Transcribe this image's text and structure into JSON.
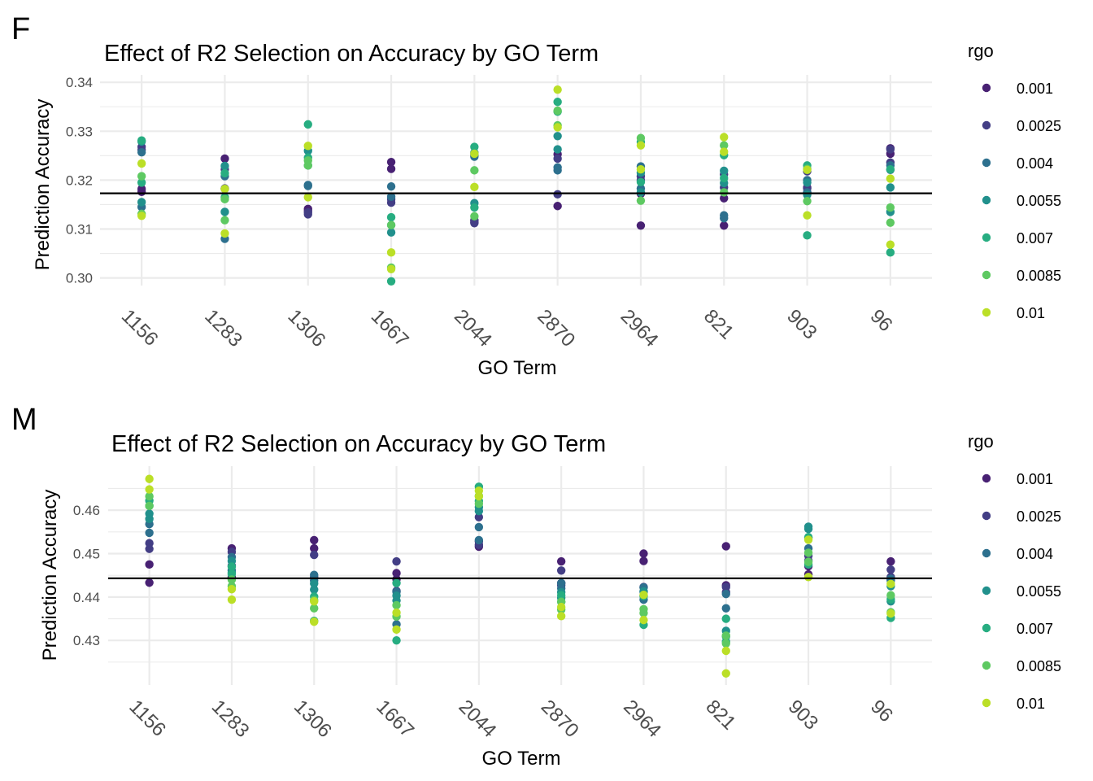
{
  "legend": {
    "title": "rgo",
    "levels": [
      {
        "label": "0.001",
        "color": "#482173"
      },
      {
        "label": "0.0025",
        "color": "#433E85"
      },
      {
        "label": "0.004",
        "color": "#2D708E"
      },
      {
        "label": "0.0055",
        "color": "#21908C"
      },
      {
        "label": "0.007",
        "color": "#27AD81"
      },
      {
        "label": "0.0085",
        "color": "#5EC962"
      },
      {
        "label": "0.01",
        "color": "#BBDF27"
      }
    ]
  },
  "chart_data": [
    {
      "panel_label": "F",
      "type": "scatter",
      "title": "Effect of R2 Selection on Accuracy by GO Term",
      "xlabel": "GO Term",
      "ylabel": "Prediction Accuracy",
      "categories": [
        "1156",
        "1283",
        "1306",
        "1667",
        "2044",
        "2870",
        "2964",
        "821",
        "903",
        "96"
      ],
      "ylim": [
        0.2975,
        0.3415
      ],
      "yticks": [
        0.3,
        0.31,
        0.32,
        0.33,
        0.34
      ],
      "ytick_labels": [
        "0.30",
        "0.31",
        "0.32",
        "0.33",
        "0.34"
      ],
      "grid": true,
      "legend_position": "right",
      "hline": 0.3173,
      "series": [
        {
          "name": "0.001",
          "values": [
            [
              0.3176,
              0.3182
            ],
            [
              0.3244,
              0.3182
            ],
            [
              0.3137,
              0.3141
            ],
            [
              0.3237,
              0.3223
            ],
            [
              0.3114,
              0.3118
            ],
            [
              0.3253,
              0.3147
            ],
            [
              0.3107,
              0.3172
            ],
            [
              0.3163,
              0.3107
            ],
            [
              0.3185,
              0.3175
            ],
            [
              0.3254,
              0.3265
            ]
          ]
        },
        {
          "name": "0.0025",
          "values": [
            [
              0.3268,
              0.3262
            ],
            [
              0.3222,
              0.3183
            ],
            [
              0.313,
              0.3134
            ],
            [
              0.3154,
              0.3161
            ],
            [
              0.3112,
              0.3117
            ],
            [
              0.3244,
              0.3171
            ],
            [
              0.3208,
              0.32
            ],
            [
              0.3212,
              0.3185
            ],
            [
              0.3218,
              0.3183
            ],
            [
              0.3263,
              0.3236
            ]
          ]
        },
        {
          "name": "0.004",
          "values": [
            [
              0.3257,
              0.3145
            ],
            [
              0.3208,
              0.308
            ],
            [
              0.3188,
              0.319
            ],
            [
              0.3187,
              0.3166
            ],
            [
              0.3251,
              0.3248
            ],
            [
              0.322,
              0.3226
            ],
            [
              0.3228,
              0.3183
            ],
            [
              0.3128,
              0.3122
            ],
            [
              0.3175,
              0.32
            ],
            [
              0.323,
              0.3221
            ]
          ]
        },
        {
          "name": "0.0055",
          "values": [
            [
              0.3279,
              0.3155
            ],
            [
              0.3229,
              0.3135
            ],
            [
              0.326,
              0.323
            ],
            [
              0.3108,
              0.3093
            ],
            [
              0.3256,
              0.3153
            ],
            [
              0.3263,
              0.329
            ],
            [
              0.3215,
              0.3175
            ],
            [
              0.3219,
              0.3194
            ],
            [
              0.3195,
              0.317
            ],
            [
              0.3185,
              0.3135
            ]
          ]
        },
        {
          "name": "0.007",
          "values": [
            [
              0.3281,
              0.3195
            ],
            [
              0.3214,
              0.3165
            ],
            [
              0.3314,
              0.3246
            ],
            [
              0.3124,
              0.2993
            ],
            [
              0.3268,
              0.3144
            ],
            [
              0.336,
              0.334
            ],
            [
              0.3278,
              0.3196
            ],
            [
              0.3251,
              0.3204
            ],
            [
              0.323,
              0.3087
            ],
            [
              0.3222,
              0.3052
            ]
          ]
        },
        {
          "name": "0.0085",
          "values": [
            [
              0.3208,
              0.3131
            ],
            [
              0.3161,
              0.3118
            ],
            [
              0.323,
              0.324
            ],
            [
              0.3108,
              0.3021
            ],
            [
              0.322,
              0.3126
            ],
            [
              0.3342,
              0.3312
            ],
            [
              0.3286,
              0.3158
            ],
            [
              0.3271,
              0.3175
            ],
            [
              0.3223,
              0.3157
            ],
            [
              0.3113,
              0.3144
            ]
          ]
        },
        {
          "name": "0.01",
          "values": [
            [
              0.3234,
              0.3127
            ],
            [
              0.3182,
              0.3091
            ],
            [
              0.327,
              0.3165
            ],
            [
              0.3052,
              0.3018
            ],
            [
              0.3186,
              0.3254
            ],
            [
              0.3385,
              0.3308
            ],
            [
              0.3271,
              0.3222
            ],
            [
              0.3288,
              0.3258
            ],
            [
              0.3221,
              0.3128
            ],
            [
              0.3203,
              0.3068
            ]
          ]
        }
      ]
    },
    {
      "panel_label": "M",
      "type": "scatter",
      "title": "Effect of R2 Selection on Accuracy by GO Term",
      "xlabel": "GO Term",
      "ylabel": "Prediction Accuracy",
      "categories": [
        "1156",
        "1283",
        "1306",
        "1667",
        "2044",
        "2870",
        "2964",
        "821",
        "903",
        "96"
      ],
      "ylim": [
        0.4213,
        0.4693
      ],
      "yticks": [
        0.43,
        0.44,
        0.45,
        0.46
      ],
      "ytick_labels": [
        "0.43",
        "0.44",
        "0.45",
        "0.46"
      ],
      "grid": true,
      "legend_position": "right",
      "hline": 0.4443,
      "series": [
        {
          "name": "0.001",
          "values": [
            [
              0.4475,
              0.4433
            ],
            [
              0.4512,
              0.4445
            ],
            [
              0.4531,
              0.4512
            ],
            [
              0.4455,
              0.4441
            ],
            [
              0.4528,
              0.4516
            ],
            [
              0.4482,
              0.4432
            ],
            [
              0.45,
              0.4483
            ],
            [
              0.4517,
              0.4427
            ],
            [
              0.4471,
              0.4452
            ],
            [
              0.4482,
              0.4441
            ]
          ]
        },
        {
          "name": "0.0025",
          "values": [
            [
              0.4524,
              0.4511
            ],
            [
              0.4504,
              0.4472
            ],
            [
              0.4497,
              0.4446
            ],
            [
              0.4482,
              0.4414
            ],
            [
              0.4584,
              0.452
            ],
            [
              0.4461,
              0.4427
            ],
            [
              0.4423,
              0.4412
            ],
            [
              0.4423,
              0.4411
            ],
            [
              0.4484,
              0.4495
            ],
            [
              0.4463,
              0.4446
            ]
          ]
        },
        {
          "name": "0.004",
          "values": [
            [
              0.4568,
              0.4548
            ],
            [
              0.4492,
              0.4461
            ],
            [
              0.4451,
              0.4438
            ],
            [
              0.4412,
              0.4337
            ],
            [
              0.4561,
              0.4531
            ],
            [
              0.4432,
              0.442
            ],
            [
              0.4422,
              0.4394
            ],
            [
              0.4407,
              0.4374
            ],
            [
              0.4536,
              0.4512
            ],
            [
              0.4442,
              0.4438
            ]
          ]
        },
        {
          "name": "0.0055",
          "values": [
            [
              0.458,
              0.4592
            ],
            [
              0.4483,
              0.4456
            ],
            [
              0.4417,
              0.4431
            ],
            [
              0.4403,
              0.4392
            ],
            [
              0.4607,
              0.4598
            ],
            [
              0.4398,
              0.4411
            ],
            [
              0.4413,
              0.4402
            ],
            [
              0.4322,
              0.4309
            ],
            [
              0.4562,
              0.4557
            ],
            [
              0.4425,
              0.439
            ]
          ]
        },
        {
          "name": "0.007",
          "values": [
            [
              0.461,
              0.4622
            ],
            [
              0.447,
              0.4453
            ],
            [
              0.4401,
              0.4345
            ],
            [
              0.4432,
              0.43
            ],
            [
              0.4621,
              0.4654
            ],
            [
              0.4389,
              0.4404
            ],
            [
              0.4402,
              0.4336
            ],
            [
              0.435,
              0.4297
            ],
            [
              0.4538,
              0.4475
            ],
            [
              0.4395,
              0.4352
            ]
          ]
        },
        {
          "name": "0.0085",
          "values": [
            [
              0.4632,
              0.461
            ],
            [
              0.444,
              0.4425
            ],
            [
              0.4393,
              0.4374
            ],
            [
              0.4381,
              0.4355
            ],
            [
              0.4615,
              0.4633
            ],
            [
              0.4371,
              0.4389
            ],
            [
              0.4372,
              0.4363
            ],
            [
              0.4311,
              0.4293
            ],
            [
              0.4502,
              0.4481
            ],
            [
              0.4404,
              0.4365
            ]
          ]
        },
        {
          "name": "0.01",
          "values": [
            [
              0.4672,
              0.4648
            ],
            [
              0.4394,
              0.4418
            ],
            [
              0.4343,
              0.439
            ],
            [
              0.4325,
              0.4364
            ],
            [
              0.4645,
              0.4632
            ],
            [
              0.4356,
              0.4377
            ],
            [
              0.4347,
              0.4405
            ],
            [
              0.4224,
              0.4276
            ],
            [
              0.4446,
              0.4532
            ],
            [
              0.4362,
              0.443
            ]
          ]
        }
      ]
    }
  ]
}
